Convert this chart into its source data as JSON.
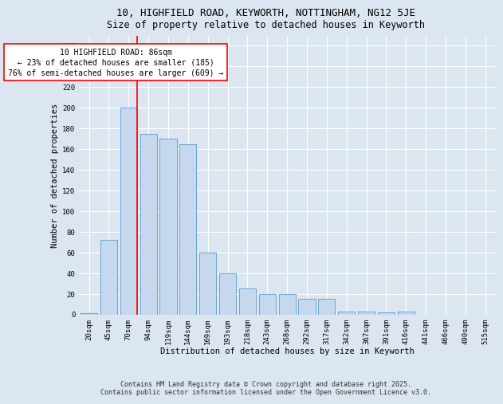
{
  "title_line1": "10, HIGHFIELD ROAD, KEYWORTH, NOTTINGHAM, NG12 5JE",
  "title_line2": "Size of property relative to detached houses in Keyworth",
  "xlabel": "Distribution of detached houses by size in Keyworth",
  "ylabel": "Number of detached properties",
  "categories": [
    "20sqm",
    "45sqm",
    "70sqm",
    "94sqm",
    "119sqm",
    "144sqm",
    "169sqm",
    "193sqm",
    "218sqm",
    "243sqm",
    "268sqm",
    "292sqm",
    "317sqm",
    "342sqm",
    "367sqm",
    "391sqm",
    "416sqm",
    "441sqm",
    "466sqm",
    "490sqm",
    "515sqm"
  ],
  "values": [
    1,
    72,
    200,
    175,
    170,
    165,
    60,
    40,
    25,
    20,
    20,
    15,
    15,
    3,
    3,
    2,
    3,
    0,
    0,
    0,
    0
  ],
  "bar_color": "#c5d8ed",
  "bar_edge_color": "#5b9bd5",
  "red_line_index": 2.425,
  "annotation_title": "10 HIGHFIELD ROAD: 86sqm",
  "annotation_line1": "← 23% of detached houses are smaller (185)",
  "annotation_line2": "76% of semi-detached houses are larger (609) →",
  "ylim": [
    0,
    270
  ],
  "yticks": [
    0,
    20,
    40,
    60,
    80,
    100,
    120,
    140,
    160,
    180,
    200,
    220,
    240,
    260
  ],
  "bg_color": "#dce6f0",
  "footer_line1": "Contains HM Land Registry data © Crown copyright and database right 2025.",
  "footer_line2": "Contains public sector information licensed under the Open Government Licence v3.0.",
  "title_fontsize": 9,
  "subtitle_fontsize": 8.5,
  "axis_label_fontsize": 7.5,
  "tick_fontsize": 6.5,
  "annotation_fontsize": 7,
  "footer_fontsize": 6
}
